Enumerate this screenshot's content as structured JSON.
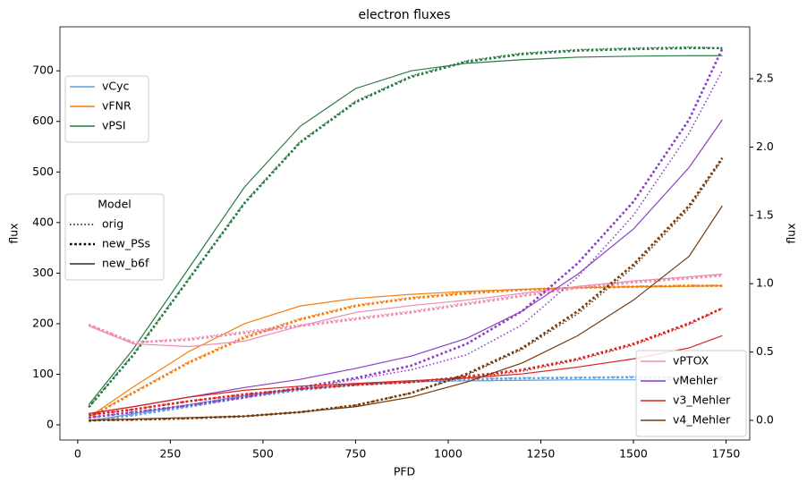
{
  "chart_data": {
    "type": "line",
    "title": "electron fluxes",
    "xlabel": "PFD",
    "ylabel": "flux",
    "y2label": "flux",
    "x": [
      30,
      150,
      300,
      450,
      600,
      750,
      900,
      1050,
      1200,
      1350,
      1500,
      1650,
      1740
    ],
    "xlim": [
      -48,
      1814
    ],
    "xticks": [
      0,
      250,
      500,
      750,
      1000,
      1250,
      1500,
      1750
    ],
    "ylim": [
      -30,
      787
    ],
    "yticks": [
      0,
      100,
      200,
      300,
      400,
      500,
      600,
      700
    ],
    "y2lim": [
      -0.144,
      2.88
    ],
    "y2ticks": [
      {
        "value": 0,
        "label": "0.0"
      },
      0.5,
      {
        "value": 1,
        "label": "1.0"
      },
      1.5,
      {
        "value": 2,
        "label": "2.0"
      },
      2.5
    ],
    "models": [
      {
        "name": "orig",
        "style": "dotted"
      },
      {
        "name": "new_PSs",
        "style": "thick-dotted"
      },
      {
        "name": "new_b6f",
        "style": "solid"
      }
    ],
    "model_legend_title": "Model",
    "model_legend": "center left",
    "legend": "upper left",
    "legend2": "lower right",
    "series": [
      {
        "name": "vCyc",
        "color": "#5fa2dd",
        "axis": "y",
        "values": [
          [
            8,
            20,
            37,
            55,
            70,
            80,
            87,
            91,
            93,
            94,
            95,
            95,
            95
          ],
          [
            7,
            19,
            36,
            54,
            69,
            79,
            86,
            90,
            92,
            93,
            94,
            93,
            93
          ],
          [
            8,
            22,
            40,
            58,
            72,
            80,
            85,
            87,
            88,
            89,
            89,
            89,
            89
          ]
        ]
      },
      {
        "name": "vFNR",
        "color": "#f57f0e",
        "axis": "y",
        "values": [
          [
            15,
            65,
            125,
            175,
            210,
            237,
            252,
            262,
            268,
            272,
            274,
            276,
            276
          ],
          [
            14,
            63,
            123,
            172,
            208,
            235,
            250,
            260,
            267,
            271,
            273,
            275,
            275
          ],
          [
            15,
            75,
            145,
            200,
            235,
            250,
            258,
            264,
            268,
            271,
            273,
            274,
            275
          ]
        ]
      },
      {
        "name": "vPSI",
        "color": "#2a7a44",
        "axis": "y",
        "values": [
          [
            35,
            140,
            290,
            440,
            560,
            640,
            690,
            720,
            735,
            742,
            745,
            747,
            745
          ],
          [
            35,
            138,
            288,
            438,
            558,
            638,
            688,
            718,
            733,
            740,
            743,
            745,
            745
          ],
          [
            40,
            150,
            310,
            470,
            590,
            665,
            700,
            715,
            722,
            727,
            729,
            730,
            730
          ]
        ]
      },
      {
        "name": "vPTOX",
        "color": "#f08bb4",
        "axis": "y2",
        "values": [
          [
            0.7,
            0.57,
            0.6,
            0.65,
            0.7,
            0.75,
            0.8,
            0.86,
            0.92,
            0.98,
            1.02,
            1.05,
            1.07
          ],
          [
            0.7,
            0.57,
            0.59,
            0.64,
            0.69,
            0.74,
            0.79,
            0.85,
            0.91,
            0.97,
            1.01,
            1.04,
            1.06
          ],
          [
            0.69,
            0.56,
            0.54,
            0.58,
            0.69,
            0.79,
            0.84,
            0.88,
            0.93,
            0.98,
            1.02,
            1.05,
            1.07
          ]
        ]
      },
      {
        "name": "vMehler",
        "color": "#8a3fc4",
        "axis": "y2",
        "values": [
          [
            0.02,
            0.06,
            0.11,
            0.17,
            0.23,
            0.3,
            0.37,
            0.48,
            0.7,
            1.05,
            1.5,
            2.1,
            2.56
          ],
          [
            0.02,
            0.06,
            0.11,
            0.17,
            0.24,
            0.31,
            0.4,
            0.56,
            0.8,
            1.15,
            1.6,
            2.2,
            2.72
          ],
          [
            0.05,
            0.1,
            0.17,
            0.24,
            0.3,
            0.38,
            0.47,
            0.6,
            0.8,
            1.07,
            1.4,
            1.85,
            2.2
          ]
        ]
      },
      {
        "name": "v3_Mehler",
        "color": "#d9231f",
        "axis": "y2",
        "values": [
          [
            0.04,
            0.08,
            0.14,
            0.19,
            0.23,
            0.26,
            0.28,
            0.31,
            0.36,
            0.44,
            0.55,
            0.7,
            0.82
          ],
          [
            0.04,
            0.08,
            0.14,
            0.19,
            0.23,
            0.26,
            0.28,
            0.32,
            0.37,
            0.45,
            0.56,
            0.71,
            0.82
          ],
          [
            0.05,
            0.1,
            0.17,
            0.22,
            0.25,
            0.27,
            0.29,
            0.31,
            0.34,
            0.39,
            0.45,
            0.53,
            0.62
          ]
        ]
      },
      {
        "name": "v4_Mehler",
        "color": "#733b0e",
        "axis": "y2",
        "values": [
          [
            0,
            0.005,
            0.015,
            0.03,
            0.06,
            0.11,
            0.2,
            0.33,
            0.52,
            0.78,
            1.12,
            1.55,
            1.91
          ],
          [
            0,
            0.005,
            0.015,
            0.03,
            0.06,
            0.11,
            0.2,
            0.34,
            0.53,
            0.8,
            1.14,
            1.57,
            1.92
          ],
          [
            0,
            0.01,
            0.02,
            0.03,
            0.06,
            0.1,
            0.17,
            0.28,
            0.42,
            0.62,
            0.88,
            1.2,
            1.57
          ]
        ]
      }
    ]
  }
}
